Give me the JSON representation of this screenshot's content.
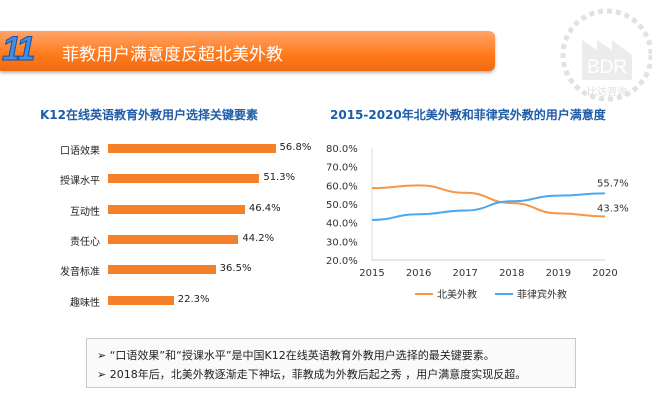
{
  "header": {
    "number": "11",
    "title": "菲教用户满意度反超北美外教",
    "logo_text": "BDR",
    "logo_sub": "比达咨询"
  },
  "chart_data": [
    {
      "type": "bar",
      "orientation": "horizontal",
      "title": "K12在线英语教育外教用户选择关键要素",
      "categories": [
        "口语效果",
        "授课水平",
        "互动性",
        "责任心",
        "发音标准",
        "趣味性"
      ],
      "values": [
        56.8,
        51.3,
        46.4,
        44.2,
        36.5,
        22.3
      ],
      "value_labels": [
        "56.8%",
        "51.3%",
        "46.4%",
        "44.2%",
        "36.5%",
        "22.3%"
      ],
      "color": "#f5802a"
    },
    {
      "type": "line",
      "title": "2015-2020年北美外教和菲律宾外教的用户满意度",
      "x": [
        "2015",
        "2016",
        "2017",
        "2018",
        "2019",
        "2020"
      ],
      "ylim": [
        20,
        80
      ],
      "yticks": [
        "20.0%",
        "30.0%",
        "40.0%",
        "50.0%",
        "60.0%",
        "70.0%",
        "80.0%"
      ],
      "legend": "bottom",
      "series": [
        {
          "name": "北美外教",
          "color": "#f79646",
          "values": [
            58.5,
            60.0,
            56.0,
            50.5,
            45.0,
            43.3
          ],
          "end_label": "43.3%"
        },
        {
          "name": "菲律宾外教",
          "color": "#4aa8f0",
          "values": [
            41.5,
            44.5,
            46.5,
            51.5,
            54.5,
            55.7
          ],
          "end_label": "55.7%"
        }
      ]
    }
  ],
  "notes": [
    "“口语效果”和“授课水平”是中国K12在线英语教育外教用户选择的最关键要素。",
    "2018年后，北美外教逐渐走下神坛，菲教成为外教后起之秀 ，用户满意度实现反超。"
  ],
  "bullet": "➢"
}
